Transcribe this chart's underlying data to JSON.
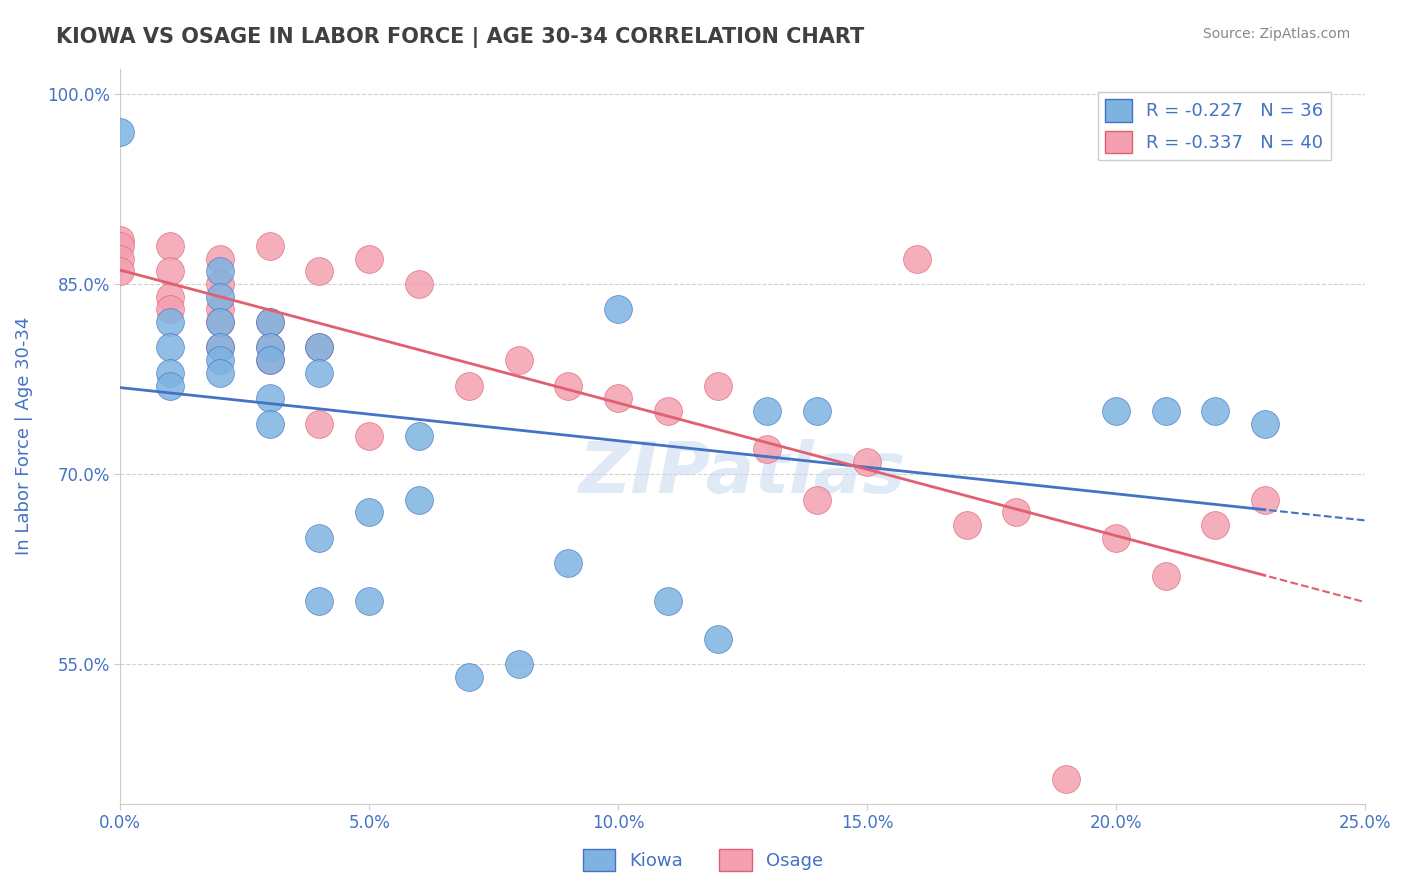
{
  "title": "KIOWA VS OSAGE IN LABOR FORCE | AGE 30-34 CORRELATION CHART",
  "source_text": "Source: ZipAtlas.com",
  "ylabel_text": "In Labor Force | Age 30-34",
  "xlim": [
    0.0,
    0.25
  ],
  "ylim": [
    0.44,
    1.02
  ],
  "xticks": [
    0.0,
    0.05,
    0.1,
    0.15,
    0.2,
    0.25
  ],
  "yticks": [
    0.55,
    0.7,
    0.85,
    1.0
  ],
  "ytick_labels": [
    "55.0%",
    "70.0%",
    "85.0%",
    "100.0%"
  ],
  "xtick_labels": [
    "0.0%",
    "5.0%",
    "10.0%",
    "15.0%",
    "20.0%",
    "25.0%"
  ],
  "legend_r_kiowa": "R = -0.227",
  "legend_n_kiowa": "N = 36",
  "legend_r_osage": "R = -0.337",
  "legend_n_osage": "N = 40",
  "kiowa_color": "#7eb3e0",
  "osage_color": "#f4a0b0",
  "kiowa_line_color": "#4472C4",
  "osage_line_color": "#E06070",
  "background_color": "#ffffff",
  "grid_color": "#d0d0d0",
  "title_color": "#404040",
  "axis_label_color": "#4472C4",
  "watermark": "ZIPatlas",
  "kiowa_x": [
    0.0,
    0.01,
    0.01,
    0.01,
    0.01,
    0.02,
    0.02,
    0.02,
    0.02,
    0.02,
    0.02,
    0.03,
    0.03,
    0.03,
    0.03,
    0.03,
    0.04,
    0.04,
    0.04,
    0.04,
    0.05,
    0.05,
    0.06,
    0.06,
    0.07,
    0.08,
    0.09,
    0.1,
    0.11,
    0.12,
    0.13,
    0.14,
    0.2,
    0.21,
    0.22,
    0.23
  ],
  "kiowa_y": [
    0.97,
    0.82,
    0.8,
    0.78,
    0.77,
    0.86,
    0.84,
    0.82,
    0.8,
    0.79,
    0.78,
    0.82,
    0.8,
    0.79,
    0.76,
    0.74,
    0.8,
    0.78,
    0.65,
    0.6,
    0.67,
    0.6,
    0.73,
    0.68,
    0.54,
    0.55,
    0.63,
    0.83,
    0.6,
    0.57,
    0.75,
    0.75,
    0.75,
    0.75,
    0.75,
    0.74
  ],
  "osage_x": [
    0.0,
    0.0,
    0.0,
    0.0,
    0.01,
    0.01,
    0.01,
    0.01,
    0.02,
    0.02,
    0.02,
    0.02,
    0.02,
    0.03,
    0.03,
    0.03,
    0.03,
    0.04,
    0.04,
    0.04,
    0.05,
    0.05,
    0.06,
    0.07,
    0.08,
    0.09,
    0.1,
    0.11,
    0.12,
    0.13,
    0.14,
    0.15,
    0.16,
    0.17,
    0.18,
    0.19,
    0.2,
    0.21,
    0.22,
    0.23
  ],
  "osage_y": [
    0.885,
    0.88,
    0.87,
    0.86,
    0.88,
    0.86,
    0.84,
    0.83,
    0.87,
    0.85,
    0.83,
    0.82,
    0.8,
    0.88,
    0.82,
    0.8,
    0.79,
    0.86,
    0.8,
    0.74,
    0.87,
    0.73,
    0.85,
    0.77,
    0.79,
    0.77,
    0.76,
    0.75,
    0.77,
    0.72,
    0.68,
    0.71,
    0.87,
    0.66,
    0.67,
    0.46,
    0.65,
    0.62,
    0.66,
    0.68
  ]
}
